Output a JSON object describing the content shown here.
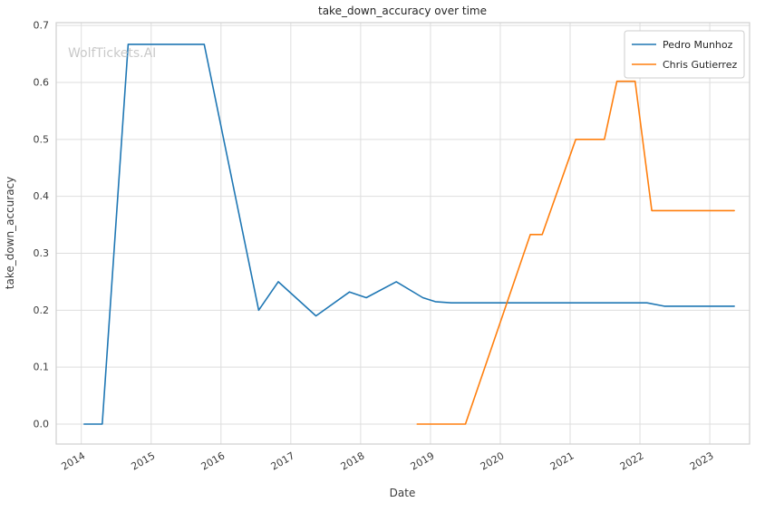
{
  "watermark": "WolfTickets.AI",
  "chart_data": {
    "type": "line",
    "title": "take_down_accuracy over time",
    "xlabel": "Date",
    "ylabel": "take_down_accuracy",
    "xlim": [
      2013.64,
      2023.57
    ],
    "ylim": [
      -0.035,
      0.705
    ],
    "x_ticks": [
      2014,
      2015,
      2016,
      2017,
      2018,
      2019,
      2020,
      2021,
      2022,
      2023
    ],
    "y_ticks": [
      0.0,
      0.1,
      0.2,
      0.3,
      0.4,
      0.5,
      0.6,
      0.7
    ],
    "grid": true,
    "legend_position": "upper right",
    "series": [
      {
        "name": "Pedro Munhoz",
        "color": "#1f77b4",
        "points": [
          [
            2014.04,
            0.0
          ],
          [
            2014.3,
            0.0
          ],
          [
            2014.67,
            0.667
          ],
          [
            2015.76,
            0.667
          ],
          [
            2016.54,
            0.2
          ],
          [
            2016.82,
            0.25
          ],
          [
            2017.36,
            0.19
          ],
          [
            2017.84,
            0.232
          ],
          [
            2018.08,
            0.222
          ],
          [
            2018.51,
            0.25
          ],
          [
            2018.89,
            0.222
          ],
          [
            2019.07,
            0.215
          ],
          [
            2019.3,
            0.213
          ],
          [
            2022.1,
            0.213
          ],
          [
            2022.35,
            0.207
          ],
          [
            2023.35,
            0.207
          ]
        ]
      },
      {
        "name": "Chris Gutierrez",
        "color": "#ff7f0e",
        "points": [
          [
            2018.81,
            0.0
          ],
          [
            2019.5,
            0.0
          ],
          [
            2020.43,
            0.333
          ],
          [
            2020.6,
            0.333
          ],
          [
            2021.08,
            0.5
          ],
          [
            2021.49,
            0.5
          ],
          [
            2021.67,
            0.602
          ],
          [
            2021.93,
            0.602
          ],
          [
            2022.17,
            0.375
          ],
          [
            2023.35,
            0.375
          ]
        ]
      }
    ]
  }
}
